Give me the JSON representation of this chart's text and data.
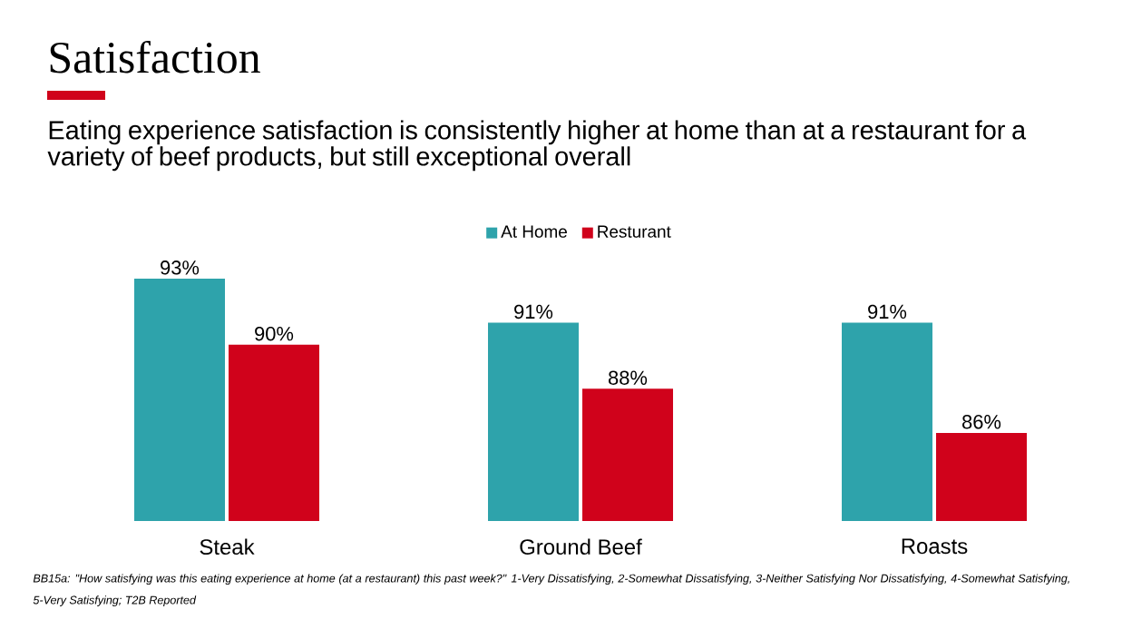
{
  "chart_data": {
    "type": "bar",
    "title": "Satisfaction",
    "subtitle": "Eating experience satisfaction is consistently higher at home than at a restaurant for a variety of beef products, but still exceptional overall",
    "categories": [
      "Steak",
      "Ground Beef",
      "Roasts"
    ],
    "series": [
      {
        "name": "At Home",
        "color": "#2ea3ab",
        "values": [
          93,
          91,
          91
        ],
        "value_labels": [
          "93%",
          "91%",
          "91%"
        ]
      },
      {
        "name": "Resturant",
        "color": "#d0021b",
        "values": [
          90,
          88,
          86
        ],
        "value_labels": [
          "90%",
          "88%",
          "86%"
        ]
      }
    ],
    "ylim": [
      82,
      93
    ],
    "tick_labels": "x",
    "legend": "top",
    "annotations": [
      "BB15a: \"How satisfying was this eating experience at home (at a restaurant) this past week?\"  1-Very Dissatisfying, 2-Somewhat Dissatisfying, 3-Neither Satisfying Nor Dissatisfying, 4-Somewhat Satisfying, 5-Very Satisfying; T2B Reported"
    ]
  }
}
